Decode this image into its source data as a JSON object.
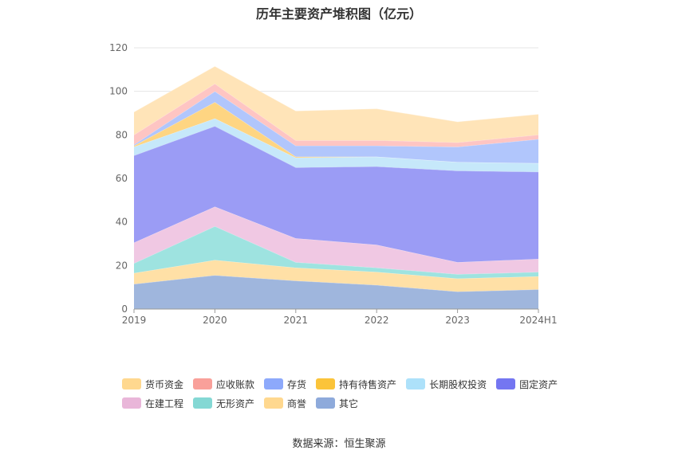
{
  "chart_data": {
    "type": "area",
    "stacked": true,
    "title": "历年主要资产堆积图（亿元）",
    "categories": [
      "2019",
      "2020",
      "2021",
      "2022",
      "2023",
      "2024H1"
    ],
    "ylim": [
      0,
      120
    ],
    "yticks": [
      0,
      20,
      40,
      60,
      80,
      100,
      120
    ],
    "grid": true,
    "legend_position": "bottom",
    "series": [
      {
        "name": "其它",
        "color": "#9fb6dd",
        "values": [
          11.5,
          15.5,
          13.0,
          11.0,
          8.0,
          9.0
        ]
      },
      {
        "name": "商誉",
        "color": "#ffe0a6",
        "values": [
          5.0,
          7.0,
          6.0,
          6.0,
          6.0,
          6.0
        ]
      },
      {
        "name": "无形资产",
        "color": "#9ee3e0",
        "values": [
          4.5,
          15.5,
          2.5,
          2.0,
          2.0,
          2.0
        ]
      },
      {
        "name": "在建工程",
        "color": "#f0c8e3",
        "values": [
          9.5,
          9.0,
          11.0,
          10.5,
          5.5,
          6.0
        ]
      },
      {
        "name": "固定资产",
        "color": "#9b9cf5",
        "values": [
          40.0,
          37.0,
          32.5,
          36.0,
          42.0,
          40.0
        ]
      },
      {
        "name": "长期股权投资",
        "color": "#c6e8fa",
        "values": [
          4.0,
          3.5,
          4.5,
          4.5,
          4.0,
          4.0
        ]
      },
      {
        "name": "持有待售资产",
        "color": "#fed582",
        "values": [
          0.5,
          7.5,
          0.5,
          0.0,
          0.0,
          0.0
        ]
      },
      {
        "name": "存货",
        "color": "#b1c6fc",
        "values": [
          0.5,
          5.0,
          5.0,
          5.0,
          7.0,
          11.0
        ]
      },
      {
        "name": "应收账款",
        "color": "#fec5c3",
        "values": [
          4.5,
          3.5,
          2.5,
          2.5,
          2.0,
          2.0
        ]
      },
      {
        "name": "货币资金",
        "color": "#ffe4b8",
        "values": [
          10.5,
          8.0,
          13.5,
          14.5,
          9.5,
          9.5
        ]
      }
    ]
  },
  "legend": {
    "rows": [
      [
        {
          "label": "货币资金",
          "color": "#ffd88f"
        },
        {
          "label": "应收账款",
          "color": "#f9a09a"
        },
        {
          "label": "存货",
          "color": "#8da9fb"
        },
        {
          "label": "持有待售资产",
          "color": "#fbc43a"
        },
        {
          "label": "长期股权投资",
          "color": "#ade1fa"
        },
        {
          "label": "固定资产",
          "color": "#7476f1"
        }
      ],
      [
        {
          "label": "在建工程",
          "color": "#e9b6d9"
        },
        {
          "label": "无形资产",
          "color": "#84d8d4"
        },
        {
          "label": "商誉",
          "color": "#ffd88f"
        },
        {
          "label": "其它",
          "color": "#8eaadb"
        }
      ]
    ]
  },
  "source": "数据来源：恒生聚源"
}
